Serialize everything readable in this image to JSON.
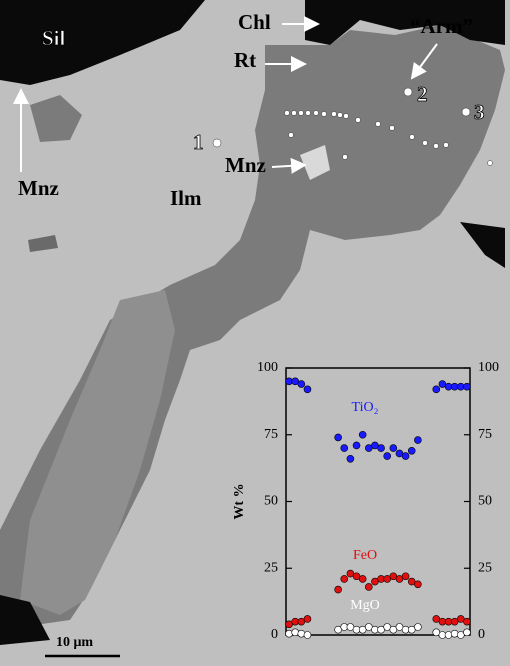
{
  "labels": {
    "sil": "Sil",
    "chl": "Chl",
    "rt": "Rt",
    "arm": "“Arm”",
    "point_1": "1",
    "point_2": "2",
    "point_3": "3",
    "mnz_upper": "Mnz",
    "mnz_left": "Mnz",
    "ilm": "Ilm",
    "scale_bar": "10 μm"
  },
  "chart_data": {
    "type": "scatter",
    "y_label": "Wt %",
    "categories": [
      null,
      null,
      null,
      null,
      null,
      null,
      null,
      null,
      null,
      null,
      null,
      null,
      null,
      null,
      null,
      null,
      null,
      null,
      null,
      null,
      null,
      null,
      null,
      null,
      null,
      null,
      null,
      null,
      null,
      null
    ],
    "series": [
      {
        "name": "TiO₂",
        "color": "#1a1aff",
        "values": [
          95,
          95,
          94,
          92,
          null,
          null,
          null,
          null,
          74,
          70,
          66,
          71,
          75,
          70,
          71,
          70,
          67,
          70,
          68,
          67,
          69,
          73,
          null,
          null,
          92,
          94,
          93,
          93,
          93,
          93
        ]
      },
      {
        "name": "FeO",
        "color": "#e01010",
        "values": [
          4,
          5,
          5,
          6,
          null,
          null,
          null,
          null,
          17,
          21,
          23,
          22,
          21,
          18,
          20,
          21,
          21,
          22,
          21,
          22,
          20,
          19,
          null,
          null,
          6,
          5,
          5,
          5,
          6,
          5
        ]
      },
      {
        "name": "MgO",
        "color": "#ffffff",
        "values": [
          0.5,
          1,
          0.5,
          0,
          null,
          null,
          null,
          null,
          2,
          3,
          3,
          2,
          2,
          3,
          2,
          2,
          3,
          2,
          3,
          2,
          2,
          3,
          null,
          null,
          1,
          0,
          0,
          0.5,
          0,
          1
        ]
      }
    ],
    "ylim": [
      0,
      100
    ],
    "yticks": [
      0,
      25,
      50,
      75,
      100
    ],
    "y2lim": [
      0,
      100
    ],
    "y2ticks": [
      0,
      25,
      50,
      75,
      100
    ]
  }
}
